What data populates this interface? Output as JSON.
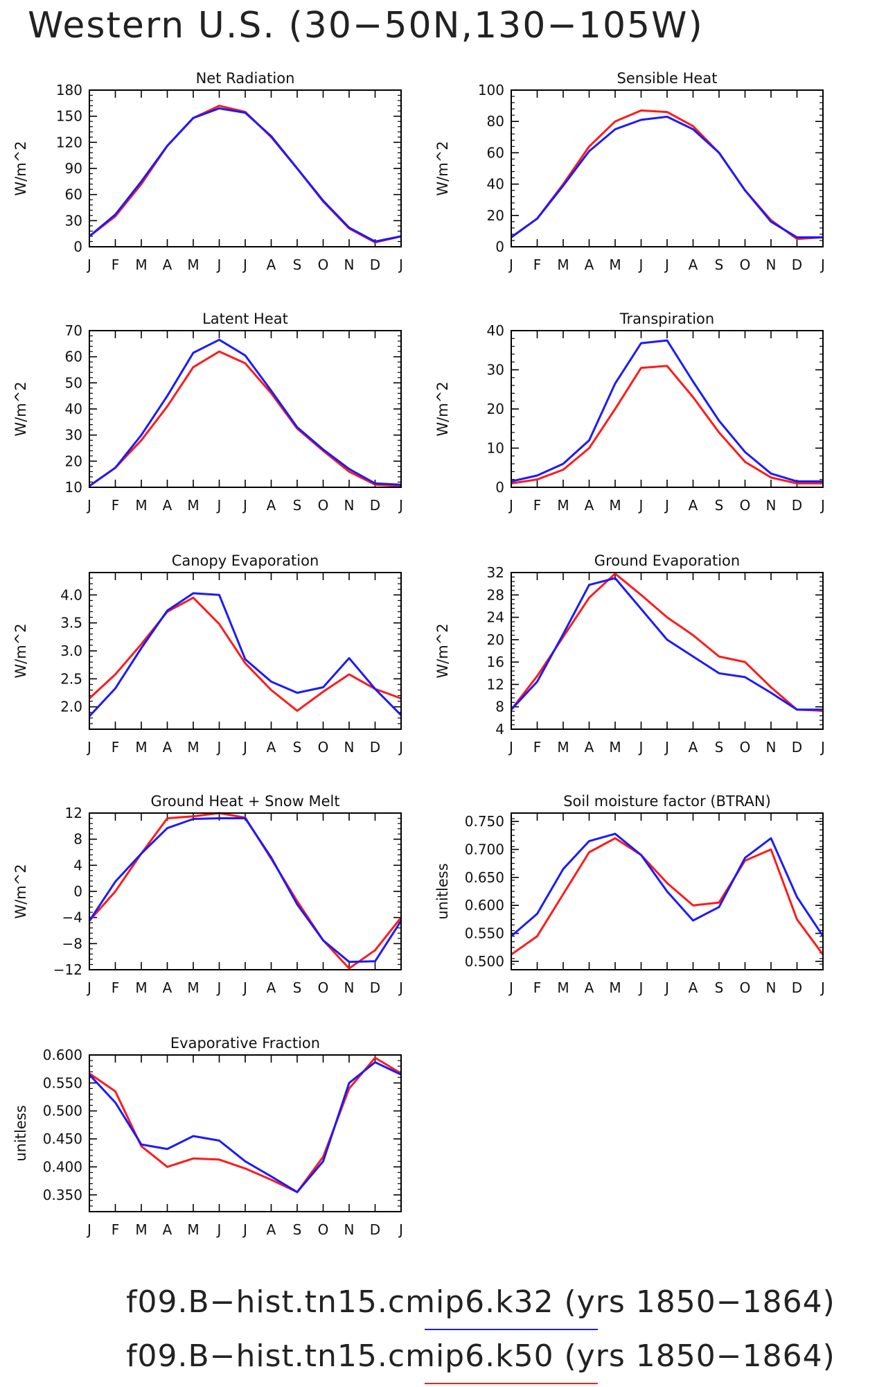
{
  "page_title": "Western U.S. (30−50N,130−105W)",
  "legend": [
    {
      "label": "f09.B−hist.tn15.cmip6.k32 (yrs 1850−1864)",
      "color": "#1a1aff"
    },
    {
      "label": "f09.B−hist.tn15.cmip6.k50 (yrs 1850−1864)",
      "color": "#ff1a1a"
    }
  ],
  "colors": {
    "k32": "#1a1aff",
    "k50": "#ff1a1a"
  },
  "chart_data": [
    {
      "type": "line",
      "title": "Net Radiation",
      "ylabel": "W/m^2",
      "categories": [
        "J",
        "F",
        "M",
        "A",
        "M",
        "J",
        "J",
        "A",
        "S",
        "O",
        "N",
        "D",
        "J"
      ],
      "ylim": [
        0,
        180
      ],
      "yticks": [
        {
          "v": 0,
          "label": "0"
        },
        {
          "v": 30,
          "label": "30"
        },
        {
          "v": 60,
          "label": "60"
        },
        {
          "v": 90,
          "label": "90"
        },
        {
          "v": 120,
          "label": "120"
        },
        {
          "v": 150,
          "label": "150"
        },
        {
          "v": 180,
          "label": "180"
        }
      ],
      "series": [
        {
          "color": "#ff1a1a",
          "values": [
            12,
            35,
            72,
            116,
            148,
            162,
            155,
            126,
            90,
            52,
            21,
            5,
            12
          ]
        },
        {
          "color": "#1a1aff",
          "values": [
            12,
            37,
            75,
            116,
            148,
            159,
            154,
            127,
            90,
            53,
            22,
            6,
            12
          ]
        }
      ]
    },
    {
      "type": "line",
      "title": "Sensible Heat",
      "ylabel": "W/m^2",
      "categories": [
        "J",
        "F",
        "M",
        "A",
        "M",
        "J",
        "J",
        "A",
        "S",
        "O",
        "N",
        "D",
        "J"
      ],
      "ylim": [
        0,
        100
      ],
      "yticks": [
        {
          "v": 0,
          "label": "0"
        },
        {
          "v": 20,
          "label": "20"
        },
        {
          "v": 40,
          "label": "40"
        },
        {
          "v": 60,
          "label": "60"
        },
        {
          "v": 80,
          "label": "80"
        },
        {
          "v": 100,
          "label": "100"
        }
      ],
      "series": [
        {
          "color": "#ff1a1a",
          "values": [
            6,
            18,
            40,
            64,
            80,
            87,
            86,
            77,
            60,
            36,
            17,
            5,
            6
          ]
        },
        {
          "color": "#1a1aff",
          "values": [
            6,
            18,
            39,
            61,
            75,
            81,
            83,
            75,
            60,
            36,
            16,
            6,
            6
          ]
        }
      ]
    },
    {
      "type": "line",
      "title": "Latent Heat",
      "ylabel": "W/m^2",
      "categories": [
        "J",
        "F",
        "M",
        "A",
        "M",
        "J",
        "J",
        "A",
        "S",
        "O",
        "N",
        "D",
        "J"
      ],
      "ylim": [
        10,
        70
      ],
      "yticks": [
        {
          "v": 10,
          "label": "10"
        },
        {
          "v": 20,
          "label": "20"
        },
        {
          "v": 30,
          "label": "30"
        },
        {
          "v": 40,
          "label": "40"
        },
        {
          "v": 50,
          "label": "50"
        },
        {
          "v": 60,
          "label": "60"
        },
        {
          "v": 70,
          "label": "70"
        }
      ],
      "series": [
        {
          "color": "#ff1a1a",
          "values": [
            10.5,
            17.5,
            28,
            41,
            56,
            62,
            57.5,
            46,
            32.5,
            24,
            16,
            11,
            10.5
          ]
        },
        {
          "color": "#1a1aff",
          "values": [
            10.5,
            17.5,
            30,
            45,
            61.5,
            66.5,
            60.5,
            47,
            33,
            24.5,
            17,
            11.5,
            11
          ]
        }
      ]
    },
    {
      "type": "line",
      "title": "Transpiration",
      "ylabel": "W/m^2",
      "categories": [
        "J",
        "F",
        "M",
        "A",
        "M",
        "J",
        "J",
        "A",
        "S",
        "O",
        "N",
        "D",
        "J"
      ],
      "ylim": [
        0,
        40
      ],
      "yticks": [
        {
          "v": 0,
          "label": "0"
        },
        {
          "v": 10,
          "label": "10"
        },
        {
          "v": 20,
          "label": "20"
        },
        {
          "v": 30,
          "label": "30"
        },
        {
          "v": 40,
          "label": "40"
        }
      ],
      "series": [
        {
          "color": "#ff1a1a",
          "values": [
            1,
            2,
            4.5,
            10,
            20,
            30.5,
            31,
            23,
            14,
            6.5,
            2.5,
            1,
            1
          ]
        },
        {
          "color": "#1a1aff",
          "values": [
            1.5,
            3,
            6,
            12,
            26.5,
            36.8,
            37.5,
            27,
            17,
            9,
            3.5,
            1.5,
            1.5
          ]
        }
      ]
    },
    {
      "type": "line",
      "title": "Canopy Evaporation",
      "ylabel": "W/m^2",
      "categories": [
        "J",
        "F",
        "M",
        "A",
        "M",
        "J",
        "J",
        "A",
        "S",
        "O",
        "N",
        "D",
        "J"
      ],
      "ylim": [
        1.6,
        4.4
      ],
      "yticks": [
        {
          "v": 2.0,
          "label": "2.0"
        },
        {
          "v": 2.5,
          "label": "2.5"
        },
        {
          "v": 3.0,
          "label": "3.0"
        },
        {
          "v": 3.5,
          "label": "3.5"
        },
        {
          "v": 4.0,
          "label": "4.0"
        }
      ],
      "series": [
        {
          "color": "#ff1a1a",
          "values": [
            2.15,
            2.58,
            3.12,
            3.7,
            3.95,
            3.48,
            2.78,
            2.3,
            1.93,
            2.27,
            2.58,
            2.32,
            2.15
          ]
        },
        {
          "color": "#1a1aff",
          "values": [
            1.83,
            2.33,
            3.05,
            3.72,
            4.03,
            4.0,
            2.85,
            2.45,
            2.25,
            2.35,
            2.87,
            2.32,
            1.85
          ]
        }
      ]
    },
    {
      "type": "line",
      "title": "Ground Evaporation",
      "ylabel": "W/m^2",
      "categories": [
        "J",
        "F",
        "M",
        "A",
        "M",
        "J",
        "J",
        "A",
        "S",
        "O",
        "N",
        "D",
        "J"
      ],
      "ylim": [
        4,
        32
      ],
      "yticks": [
        {
          "v": 4,
          "label": "4"
        },
        {
          "v": 8,
          "label": "8"
        },
        {
          "v": 12,
          "label": "12"
        },
        {
          "v": 16,
          "label": "16"
        },
        {
          "v": 20,
          "label": "20"
        },
        {
          "v": 24,
          "label": "24"
        },
        {
          "v": 28,
          "label": "28"
        },
        {
          "v": 32,
          "label": "32"
        }
      ],
      "series": [
        {
          "color": "#ff1a1a",
          "values": [
            7.5,
            13.5,
            20.5,
            27.5,
            31.8,
            28,
            24,
            20.8,
            17,
            16,
            11.5,
            7.5,
            7.3
          ]
        },
        {
          "color": "#1a1aff",
          "values": [
            7.5,
            12.5,
            21,
            29.8,
            31,
            25.5,
            20,
            17,
            14,
            13.3,
            10.5,
            7.5,
            7.5
          ]
        }
      ]
    },
    {
      "type": "line",
      "title": "Ground Heat + Snow Melt",
      "ylabel": "W/m^2",
      "categories": [
        "J",
        "F",
        "M",
        "A",
        "M",
        "J",
        "J",
        "A",
        "S",
        "O",
        "N",
        "D",
        "J"
      ],
      "ylim": [
        -12,
        12
      ],
      "yticks": [
        {
          "v": -12,
          "label": "−12"
        },
        {
          "v": -8,
          "label": "−8"
        },
        {
          "v": -4,
          "label": "−4"
        },
        {
          "v": 0,
          "label": "0"
        },
        {
          "v": 4,
          "label": "4"
        },
        {
          "v": 8,
          "label": "8"
        },
        {
          "v": 12,
          "label": "12"
        }
      ],
      "series": [
        {
          "color": "#ff1a1a",
          "values": [
            -4.5,
            0,
            5.8,
            11.2,
            11.5,
            12,
            11.3,
            5,
            -1.5,
            -7.5,
            -11.8,
            -9,
            -4
          ]
        },
        {
          "color": "#1a1aff",
          "values": [
            -4.5,
            1.5,
            5.8,
            9.7,
            11.1,
            11.2,
            11.2,
            5.2,
            -2,
            -7.5,
            -10.8,
            -10.7,
            -4.5
          ]
        }
      ]
    },
    {
      "type": "line",
      "title": "Soil moisture factor (BTRAN)",
      "ylabel": "unitless",
      "categories": [
        "J",
        "F",
        "M",
        "A",
        "M",
        "J",
        "J",
        "A",
        "S",
        "O",
        "N",
        "D",
        "J"
      ],
      "ylim": [
        0.485,
        0.765
      ],
      "yticks": [
        {
          "v": 0.5,
          "label": "0.500"
        },
        {
          "v": 0.55,
          "label": "0.550"
        },
        {
          "v": 0.6,
          "label": "0.600"
        },
        {
          "v": 0.65,
          "label": "0.650"
        },
        {
          "v": 0.7,
          "label": "0.700"
        },
        {
          "v": 0.75,
          "label": "0.750"
        }
      ],
      "series": [
        {
          "color": "#ff1a1a",
          "values": [
            0.512,
            0.545,
            0.62,
            0.695,
            0.72,
            0.69,
            0.64,
            0.6,
            0.605,
            0.68,
            0.7,
            0.575,
            0.512
          ]
        },
        {
          "color": "#1a1aff",
          "values": [
            0.545,
            0.585,
            0.665,
            0.715,
            0.728,
            0.69,
            0.625,
            0.573,
            0.597,
            0.685,
            0.72,
            0.615,
            0.545
          ]
        }
      ]
    },
    {
      "type": "line",
      "title": "Evaporative Fraction",
      "ylabel": "unitless",
      "categories": [
        "J",
        "F",
        "M",
        "A",
        "M",
        "J",
        "J",
        "A",
        "S",
        "O",
        "N",
        "D",
        "J"
      ],
      "ylim": [
        0.32,
        0.6
      ],
      "yticks": [
        {
          "v": 0.35,
          "label": "0.350"
        },
        {
          "v": 0.4,
          "label": "0.400"
        },
        {
          "v": 0.45,
          "label": "0.450"
        },
        {
          "v": 0.5,
          "label": "0.500"
        },
        {
          "v": 0.55,
          "label": "0.550"
        },
        {
          "v": 0.6,
          "label": "0.600"
        }
      ],
      "series": [
        {
          "color": "#ff1a1a",
          "values": [
            0.567,
            0.535,
            0.437,
            0.4,
            0.415,
            0.413,
            0.397,
            0.377,
            0.355,
            0.418,
            0.54,
            0.595,
            0.567
          ]
        },
        {
          "color": "#1a1aff",
          "values": [
            0.565,
            0.515,
            0.44,
            0.432,
            0.455,
            0.447,
            0.41,
            0.383,
            0.355,
            0.41,
            0.55,
            0.587,
            0.565
          ]
        }
      ]
    }
  ]
}
